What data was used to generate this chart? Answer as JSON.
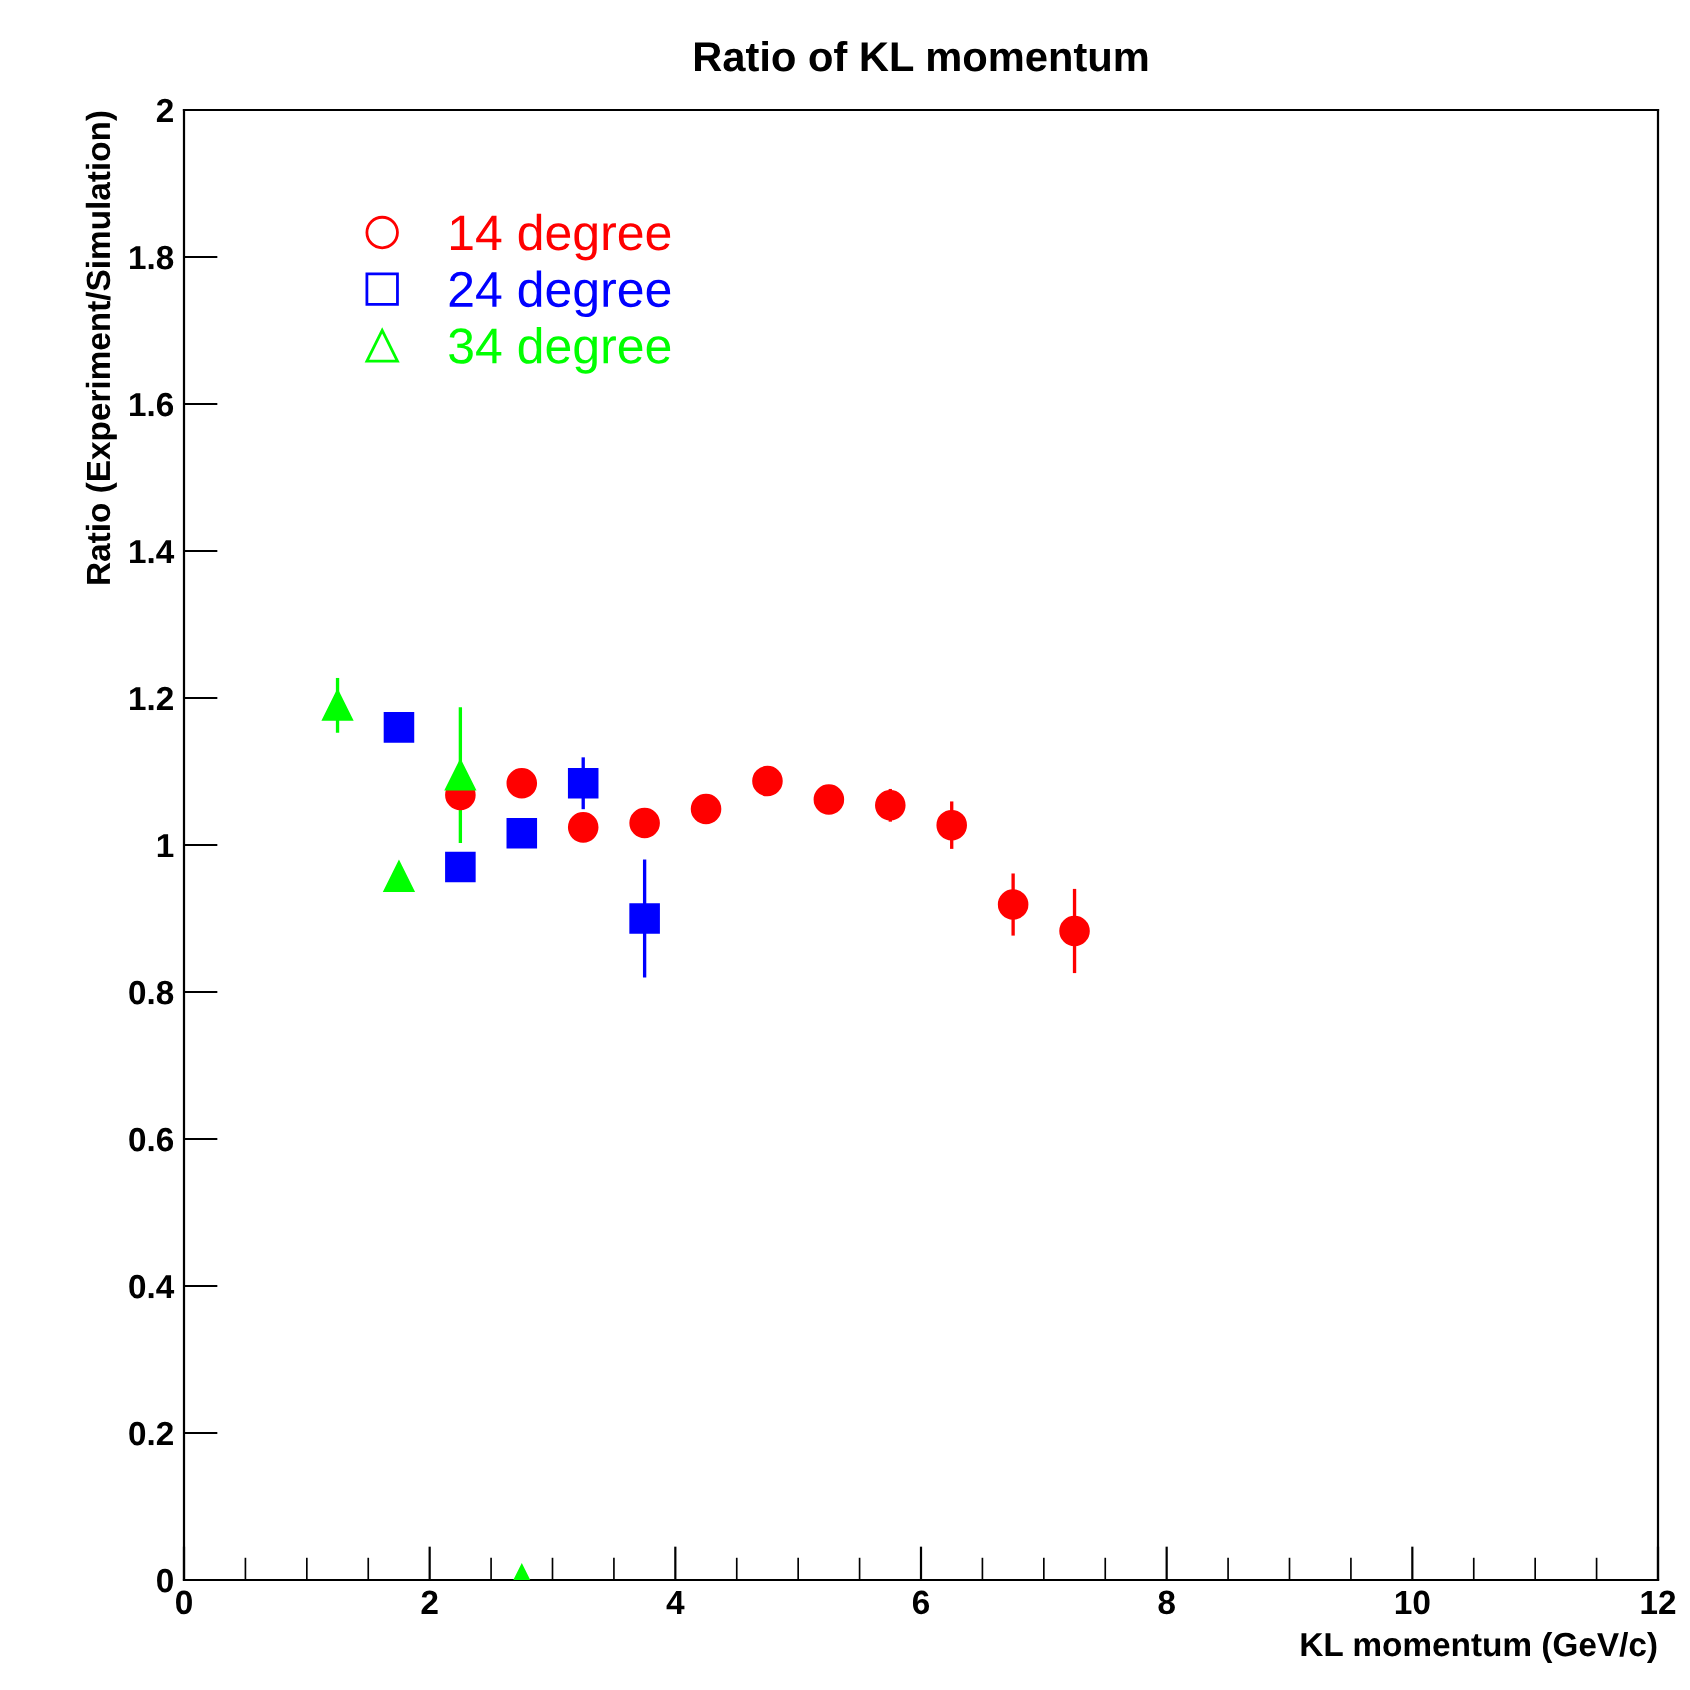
{
  "chart_data": {
    "type": "scatter",
    "title": "Ratio of KL momentum",
    "xlabel": "KL momentum (GeV/c)",
    "ylabel": "Ratio (Experiment/Simulation)",
    "xlim": [
      0,
      12
    ],
    "ylim": [
      0,
      2
    ],
    "xticks": [
      0,
      {
        "value": 0.5,
        "label": null
      },
      {
        "value": 1,
        "label": null
      },
      {
        "value": 1.5,
        "label": null
      },
      2,
      {
        "value": 2.5,
        "label": null
      },
      {
        "value": 3,
        "label": null
      },
      {
        "value": 3.5,
        "label": null
      },
      4,
      {
        "value": 4.5,
        "label": null
      },
      {
        "value": 5,
        "label": null
      },
      {
        "value": 5.5,
        "label": null
      },
      6,
      {
        "value": 6.5,
        "label": null
      },
      {
        "value": 7,
        "label": null
      },
      {
        "value": 7.5,
        "label": null
      },
      8,
      {
        "value": 8.5,
        "label": null
      },
      {
        "value": 9,
        "label": null
      },
      {
        "value": 9.5,
        "label": null
      },
      10,
      {
        "value": 10.5,
        "label": null
      },
      {
        "value": 11,
        "label": null
      },
      {
        "value": 11.5,
        "label": null
      },
      12
    ],
    "yticks": [
      0,
      0.2,
      0.4,
      0.6,
      0.8,
      1,
      1.2,
      1.4,
      1.6,
      1.8,
      2
    ],
    "grid": false,
    "legend": "top left",
    "series": [
      {
        "name": "14 degree",
        "color": "#ff0000",
        "marker": "circle",
        "x": [
          2.25,
          2.75,
          3.25,
          3.75,
          4.25,
          4.75,
          5.25,
          5.75,
          6.25,
          6.75,
          7.25
        ],
        "values": [
          1.068,
          1.084,
          1.024,
          1.03,
          1.049,
          1.087,
          1.062,
          1.054,
          1.027,
          0.919,
          0.883
        ],
        "errors": [
          null,
          null,
          null,
          null,
          null,
          null,
          null,
          0.02,
          0.03,
          0.04,
          0.055
        ]
      },
      {
        "name": "24 degree",
        "color": "#0000ff",
        "marker": "square",
        "x": [
          1.75,
          2.25,
          2.75,
          3.25,
          3.75
        ],
        "values": [
          1.16,
          0.97,
          1.016,
          1.084,
          0.9
        ],
        "errors": [
          null,
          null,
          null,
          0.033,
          0.078
        ]
      },
      {
        "name": "34 degree",
        "color": "#00ff00",
        "marker": "triangle",
        "x": [
          1.25,
          1.75,
          2.25,
          2.75
        ],
        "values": [
          1.19,
          0.957,
          1.095,
          0
        ],
        "errors": [
          0.035,
          null,
          0.09,
          null
        ]
      }
    ]
  }
}
